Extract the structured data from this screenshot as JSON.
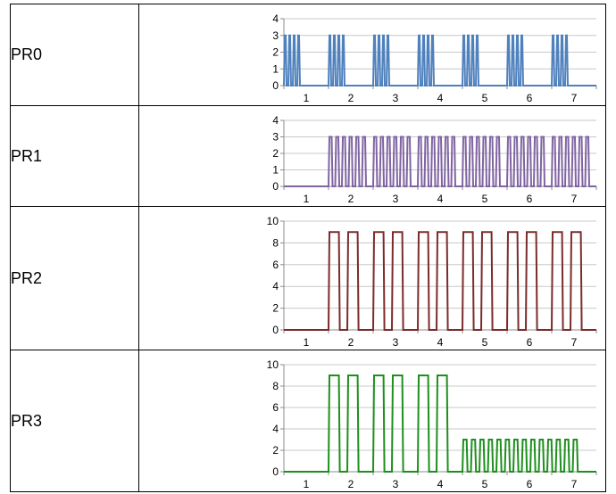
{
  "chart_data": [
    {
      "type": "line",
      "row_label": "PR0",
      "color": "#4f81bd",
      "ylim": [
        0,
        4
      ],
      "yticks": [
        0,
        1,
        2,
        3,
        4
      ],
      "categories": [
        "1",
        "2",
        "3",
        "4",
        "5",
        "6",
        "7"
      ],
      "series": [
        {
          "pattern": [
            {
              "start": 0.0,
              "pulses": 4,
              "period": 0.1,
              "high": 3
            },
            {
              "start": 1.0,
              "pulses": 4,
              "period": 0.1,
              "high": 3
            },
            {
              "start": 2.0,
              "pulses": 4,
              "period": 0.1,
              "high": 3
            },
            {
              "start": 3.0,
              "pulses": 4,
              "period": 0.1,
              "high": 3
            },
            {
              "start": 4.0,
              "pulses": 4,
              "period": 0.1,
              "high": 3
            },
            {
              "start": 5.0,
              "pulses": 4,
              "period": 0.1,
              "high": 3
            },
            {
              "start": 6.0,
              "pulses": 4,
              "period": 0.1,
              "high": 3
            }
          ]
        }
      ]
    },
    {
      "type": "line",
      "row_label": "PR1",
      "color": "#8064a2",
      "ylim": [
        0,
        4
      ],
      "yticks": [
        0,
        1,
        2,
        3,
        4
      ],
      "categories": [
        "1",
        "2",
        "3",
        "4",
        "5",
        "6",
        "7"
      ],
      "series": [
        {
          "pattern": [
            {
              "start": 1.0,
              "pulses": 6,
              "period": 0.15,
              "high": 3
            },
            {
              "start": 2.0,
              "pulses": 6,
              "period": 0.15,
              "high": 3
            },
            {
              "start": 3.0,
              "pulses": 6,
              "period": 0.15,
              "high": 3
            },
            {
              "start": 4.0,
              "pulses": 6,
              "period": 0.15,
              "high": 3
            },
            {
              "start": 5.0,
              "pulses": 6,
              "period": 0.15,
              "high": 3
            },
            {
              "start": 6.0,
              "pulses": 6,
              "period": 0.15,
              "high": 3
            }
          ]
        }
      ]
    },
    {
      "type": "line",
      "row_label": "PR2",
      "color": "#7b2c2c",
      "ylim": [
        0,
        10
      ],
      "yticks": [
        0,
        2,
        4,
        6,
        8,
        10
      ],
      "categories": [
        "1",
        "2",
        "3",
        "4",
        "5",
        "6",
        "7"
      ],
      "series": [
        {
          "pattern": [
            {
              "start": 1.0,
              "pulses": 2,
              "period": 0.42,
              "high": 9
            },
            {
              "start": 2.0,
              "pulses": 2,
              "period": 0.42,
              "high": 9
            },
            {
              "start": 3.0,
              "pulses": 2,
              "period": 0.42,
              "high": 9
            },
            {
              "start": 4.0,
              "pulses": 2,
              "period": 0.42,
              "high": 9
            },
            {
              "start": 5.0,
              "pulses": 2,
              "period": 0.42,
              "high": 9
            },
            {
              "start": 6.0,
              "pulses": 2,
              "period": 0.42,
              "high": 9
            }
          ]
        }
      ]
    },
    {
      "type": "line",
      "row_label": "PR3",
      "color": "#1e8f1e",
      "ylim": [
        0,
        10
      ],
      "yticks": [
        0,
        2,
        4,
        6,
        8,
        10
      ],
      "categories": [
        "1",
        "2",
        "3",
        "4",
        "5",
        "6",
        "7"
      ],
      "series": [
        {
          "pattern": [
            {
              "start": 1.0,
              "pulses": 2,
              "period": 0.42,
              "high": 9
            },
            {
              "start": 2.0,
              "pulses": 2,
              "period": 0.42,
              "high": 9
            },
            {
              "start": 3.0,
              "pulses": 2,
              "period": 0.42,
              "high": 9
            },
            {
              "start": 4.0,
              "pulses": 14,
              "period": 0.19,
              "high": 3
            }
          ]
        }
      ]
    }
  ]
}
